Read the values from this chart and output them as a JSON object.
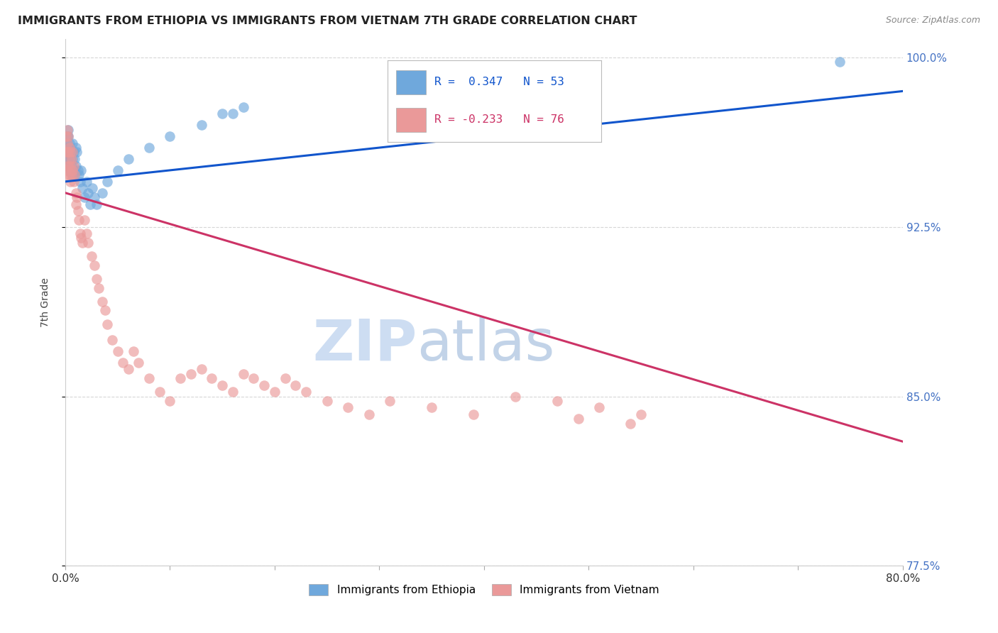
{
  "title": "IMMIGRANTS FROM ETHIOPIA VS IMMIGRANTS FROM VIETNAM 7TH GRADE CORRELATION CHART",
  "source": "Source: ZipAtlas.com",
  "ylabel": "7th Grade",
  "xmin": 0.0,
  "xmax": 0.8,
  "ymin": 0.775,
  "ymax": 1.008,
  "ytick_labels": [
    "100.0%",
    "92.5%",
    "85.0%",
    "77.5%"
  ],
  "ytick_values": [
    1.0,
    0.925,
    0.85,
    0.775
  ],
  "legend_r_ethiopia": "R =  0.347",
  "legend_n_ethiopia": "N = 53",
  "legend_r_vietnam": "R = -0.233",
  "legend_n_vietnam": "N = 76",
  "color_ethiopia": "#6fa8dc",
  "color_vietnam": "#ea9999",
  "line_color_ethiopia": "#1155cc",
  "line_color_vietnam": "#cc3366",
  "watermark_zip": "ZIP",
  "watermark_atlas": "atlas",
  "watermark_color_zip": "#c8dff5",
  "watermark_color_atlas": "#b0c8e8",
  "ethiopia_x": [
    0.001,
    0.001,
    0.001,
    0.002,
    0.002,
    0.002,
    0.002,
    0.003,
    0.003,
    0.003,
    0.003,
    0.004,
    0.004,
    0.004,
    0.005,
    0.005,
    0.005,
    0.006,
    0.006,
    0.006,
    0.007,
    0.007,
    0.007,
    0.008,
    0.008,
    0.009,
    0.009,
    0.01,
    0.01,
    0.011,
    0.012,
    0.013,
    0.014,
    0.015,
    0.016,
    0.018,
    0.02,
    0.022,
    0.024,
    0.026,
    0.028,
    0.03,
    0.035,
    0.04,
    0.05,
    0.06,
    0.08,
    0.1,
    0.13,
    0.15,
    0.16,
    0.17,
    0.74
  ],
  "ethiopia_y": [
    0.96,
    0.958,
    0.955,
    0.965,
    0.962,
    0.958,
    0.955,
    0.968,
    0.965,
    0.96,
    0.955,
    0.962,
    0.958,
    0.952,
    0.96,
    0.955,
    0.95,
    0.958,
    0.952,
    0.948,
    0.962,
    0.955,
    0.948,
    0.958,
    0.95,
    0.955,
    0.948,
    0.96,
    0.952,
    0.958,
    0.95,
    0.948,
    0.945,
    0.95,
    0.942,
    0.938,
    0.945,
    0.94,
    0.935,
    0.942,
    0.938,
    0.935,
    0.94,
    0.945,
    0.95,
    0.955,
    0.96,
    0.965,
    0.97,
    0.975,
    0.975,
    0.978,
    0.998
  ],
  "vietnam_x": [
    0.001,
    0.001,
    0.001,
    0.002,
    0.002,
    0.002,
    0.002,
    0.002,
    0.003,
    0.003,
    0.003,
    0.004,
    0.004,
    0.004,
    0.005,
    0.005,
    0.005,
    0.006,
    0.006,
    0.007,
    0.007,
    0.008,
    0.008,
    0.009,
    0.01,
    0.01,
    0.011,
    0.012,
    0.013,
    0.014,
    0.015,
    0.016,
    0.018,
    0.02,
    0.022,
    0.025,
    0.028,
    0.03,
    0.032,
    0.035,
    0.038,
    0.04,
    0.045,
    0.05,
    0.055,
    0.06,
    0.065,
    0.07,
    0.08,
    0.09,
    0.1,
    0.11,
    0.12,
    0.13,
    0.14,
    0.15,
    0.16,
    0.17,
    0.18,
    0.19,
    0.2,
    0.21,
    0.22,
    0.23,
    0.25,
    0.27,
    0.29,
    0.31,
    0.35,
    0.39,
    0.43,
    0.47,
    0.51,
    0.55,
    0.49,
    0.54
  ],
  "vietnam_y": [
    0.965,
    0.958,
    0.95,
    0.968,
    0.962,
    0.958,
    0.952,
    0.948,
    0.965,
    0.958,
    0.952,
    0.96,
    0.955,
    0.948,
    0.958,
    0.952,
    0.945,
    0.955,
    0.948,
    0.958,
    0.95,
    0.952,
    0.945,
    0.948,
    0.94,
    0.935,
    0.938,
    0.932,
    0.928,
    0.922,
    0.92,
    0.918,
    0.928,
    0.922,
    0.918,
    0.912,
    0.908,
    0.902,
    0.898,
    0.892,
    0.888,
    0.882,
    0.875,
    0.87,
    0.865,
    0.862,
    0.87,
    0.865,
    0.858,
    0.852,
    0.848,
    0.858,
    0.86,
    0.862,
    0.858,
    0.855,
    0.852,
    0.86,
    0.858,
    0.855,
    0.852,
    0.858,
    0.855,
    0.852,
    0.848,
    0.845,
    0.842,
    0.848,
    0.845,
    0.842,
    0.85,
    0.848,
    0.845,
    0.842,
    0.84,
    0.838
  ],
  "eth_line_x": [
    0.0,
    0.8
  ],
  "eth_line_y": [
    0.945,
    0.985
  ],
  "vie_line_x": [
    0.0,
    0.8
  ],
  "vie_line_y": [
    0.94,
    0.83
  ]
}
